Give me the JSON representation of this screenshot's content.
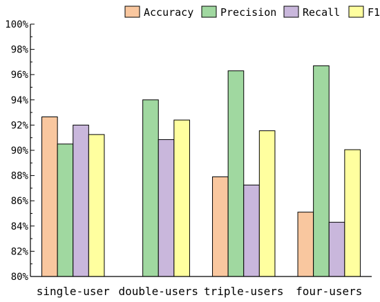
{
  "chart_data": {
    "type": "bar",
    "categories": [
      "single-user",
      "double-users",
      "triple-users",
      "four-users"
    ],
    "series": [
      {
        "name": "Accuracy",
        "color": "#f9c79f",
        "values": [
          92.65,
          null,
          87.9,
          85.1
        ]
      },
      {
        "name": "Precision",
        "color": "#a0d8a0",
        "values": [
          90.5,
          94.0,
          96.3,
          96.7
        ]
      },
      {
        "name": "Recall",
        "color": "#c9b7dc",
        "values": [
          92.0,
          90.85,
          87.25,
          84.3
        ]
      },
      {
        "name": "F1",
        "color": "#ffff9f",
        "values": [
          91.25,
          92.4,
          91.55,
          90.05
        ]
      }
    ],
    "ylim": [
      80,
      100
    ],
    "yticks": [
      80,
      82,
      84,
      86,
      88,
      90,
      92,
      94,
      96,
      98,
      100
    ],
    "ytick_suffix": "%",
    "legend_position": "top",
    "grid": false,
    "title": "",
    "xlabel": "",
    "ylabel": ""
  }
}
